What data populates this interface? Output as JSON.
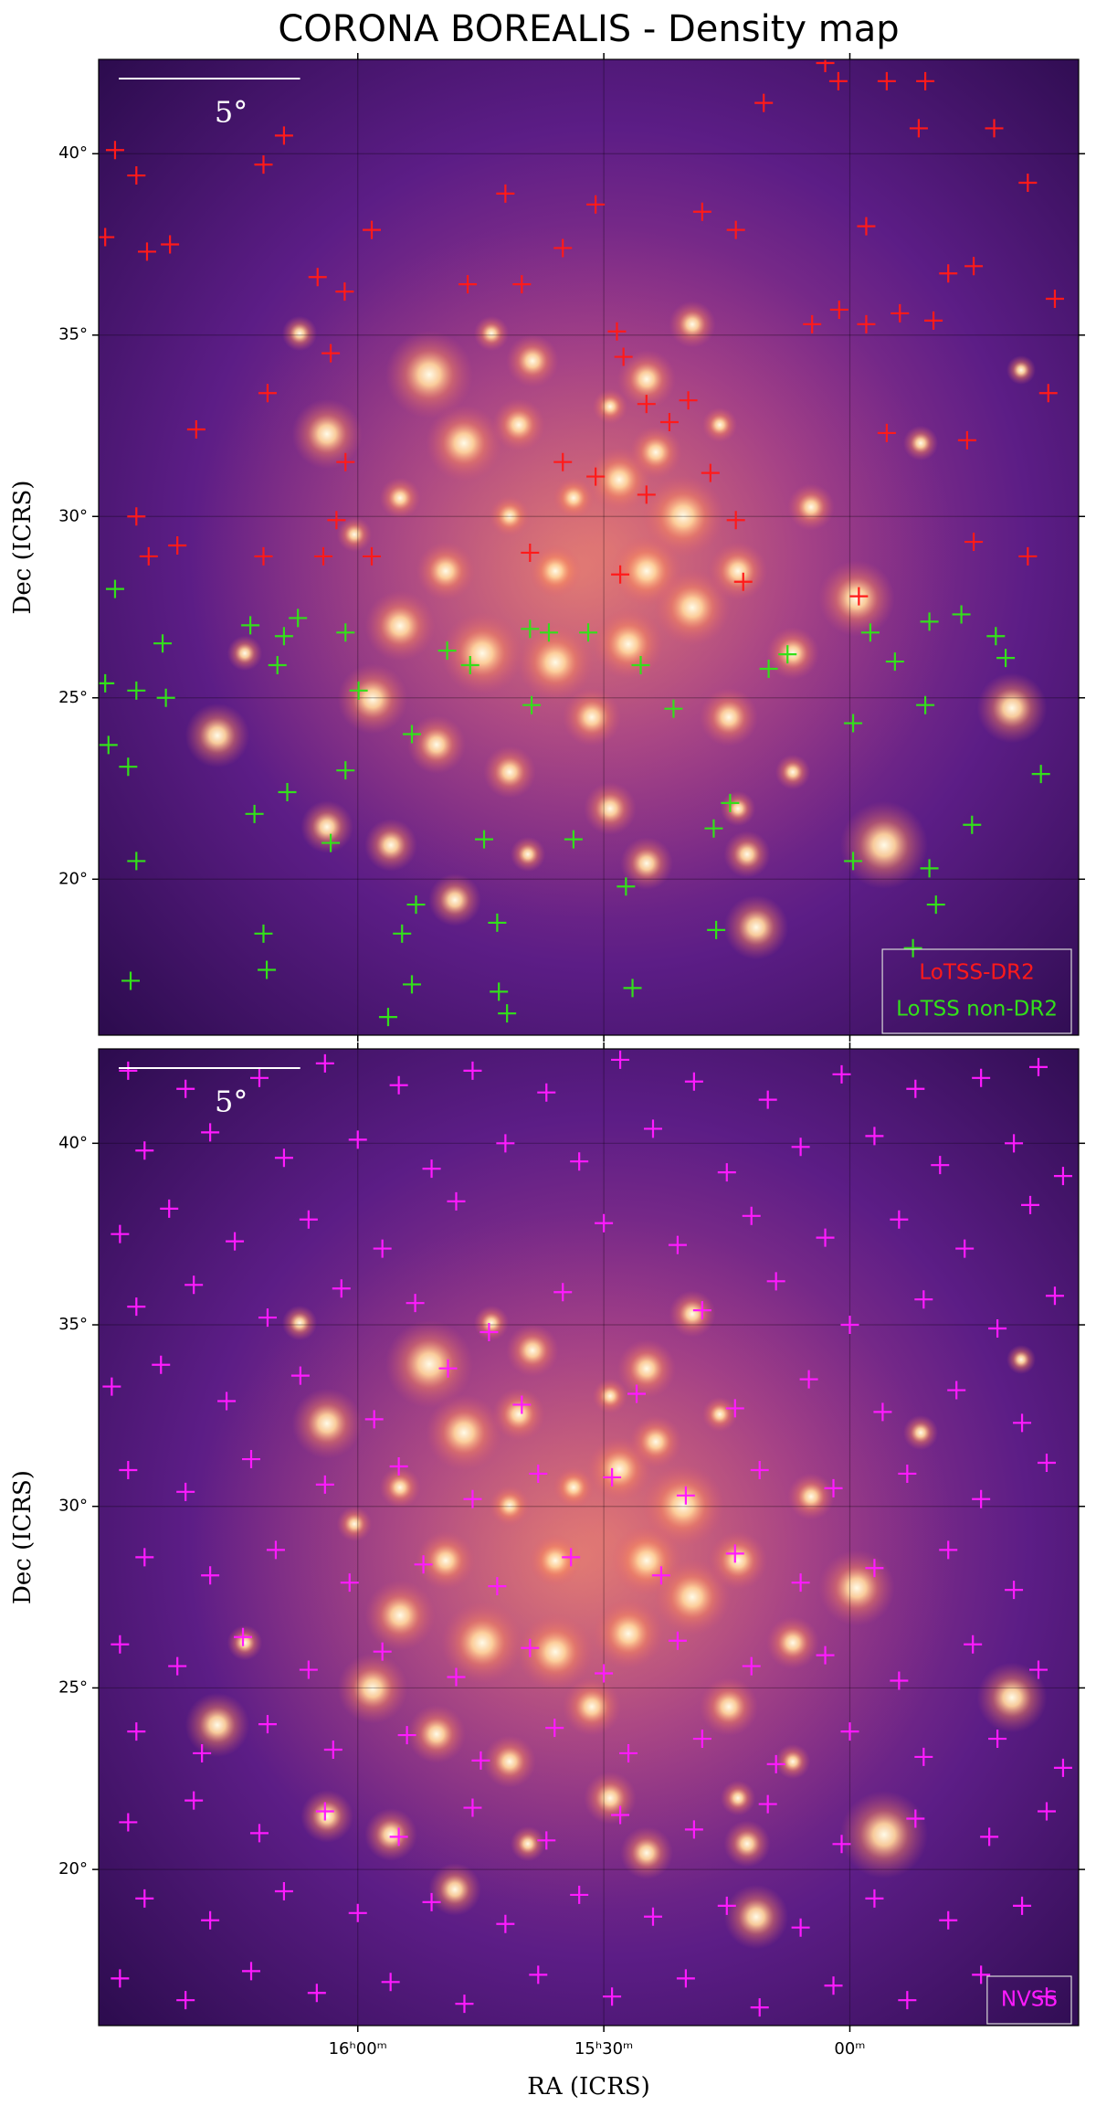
{
  "chart_data": [
    {
      "type": "scatter",
      "title": "CORONA BOREALIS - Density map",
      "ylabel": "Dec (ICRS)",
      "xlim": [
        991.6,
        872.1
      ],
      "ylim": [
        15.7,
        42.6
      ],
      "yticks": [
        {
          "value": 20,
          "label": "20°"
        },
        {
          "value": 25,
          "label": "25°"
        },
        {
          "value": 30,
          "label": "30°"
        },
        {
          "value": 35,
          "label": "35°"
        },
        {
          "value": 40,
          "label": "40°"
        }
      ],
      "grid": true,
      "legend": "lower right",
      "scale_bar": {
        "value": 5,
        "label": "5°"
      },
      "series": [
        {
          "name": "LoTSS-DR2",
          "color": "#ff1a1a",
          "x": [
            989.6,
            987,
            985.7,
            982.9,
            990.8,
            971.5,
            969,
            964.9,
            961.6,
            958.3,
            963.3,
            971,
            979.7,
            961.5,
            962.6,
            964.2,
            971.5,
            958.3,
            987,
            985.5,
            982,
            942,
            946.6,
            940,
            935,
            931,
            928.4,
            927.6,
            935,
            931,
            924.8,
            922,
            919.7,
            924.8,
            939,
            928,
            917,
            913.9,
            913,
            918,
            913.9,
            904.6,
            901.3,
            898,
            898,
            893.9,
            889.8,
            888,
            884.9,
            875,
            875.8,
            885.7,
            884.9,
            895.5,
            898.9,
            878.3,
            901.4,
            890.8,
            910.5,
            891.6,
            878.3,
            882.4,
            895.5,
            903
          ],
          "y": [
            40.1,
            39.4,
            37.3,
            37.5,
            37.7,
            39.7,
            40.5,
            36.6,
            36.2,
            37.9,
            34.5,
            33.4,
            32.4,
            31.5,
            29.9,
            28.9,
            28.9,
            28.9,
            30,
            28.9,
            29.2,
            38.9,
            36.4,
            36.4,
            37.4,
            38.6,
            35.1,
            34.4,
            31.5,
            31.1,
            33.1,
            32.6,
            33.2,
            30.6,
            29,
            28.4,
            31.2,
            29.9,
            28.2,
            38.4,
            37.9,
            35.3,
            35.7,
            38,
            35.3,
            35.6,
            35.4,
            36.7,
            36.9,
            36,
            33.4,
            32.1,
            29.3,
            32.3,
            27.8,
            28.9,
            42,
            42,
            41.4,
            40.7,
            39.2,
            40.7,
            42,
            42.5
          ]
        },
        {
          "name": "LoTSS non-DR2",
          "color": "#33e01a",
          "x": [
            989.6,
            990.8,
            987,
            983.8,
            983.4,
            990.4,
            988,
            987,
            973.1,
            969,
            969.8,
            967.3,
            961.5,
            959.9,
            961.5,
            963.3,
            972.6,
            968.6,
            953.4,
            952.9,
            954.6,
            953.4,
            949.1,
            946.3,
            944.6,
            943,
            939,
            938.8,
            936.7,
            933.7,
            931.9,
            927.3,
            925.5,
            921.5,
            916.6,
            916.3,
            914.6,
            909.9,
            907.6,
            899.6,
            897.5,
            899.6,
            894.5,
            890.8,
            890.3,
            886.4,
            882.2,
            881,
            876.7,
            885.1,
            890.3,
            889.5,
            971.5,
            971.1,
            987.7,
            956.3,
            942.8,
            941.8,
            926.5,
            892.3
          ],
          "y": [
            28,
            25.4,
            25.2,
            26.5,
            25,
            23.7,
            23.1,
            20.5,
            27,
            26.7,
            25.9,
            27.2,
            26.8,
            25.2,
            23,
            21,
            21.8,
            22.4,
            24,
            19.3,
            18.5,
            17.1,
            26.3,
            25.9,
            21.1,
            18.8,
            26.9,
            24.8,
            26.8,
            21.1,
            26.8,
            19.8,
            25.9,
            24.7,
            21.4,
            18.6,
            22.1,
            25.8,
            26.2,
            24.3,
            26.8,
            20.5,
            26,
            24.8,
            27.1,
            27.3,
            26.7,
            26.1,
            22.9,
            21.5,
            20.3,
            19.3,
            18.5,
            17.5,
            17.2,
            16.2,
            16.9,
            16.3,
            17,
            18.1
          ]
        }
      ]
    },
    {
      "type": "scatter",
      "ylabel": "Dec (ICRS)",
      "xlabel": "RA (ICRS)",
      "xlim": [
        991.6,
        872.1
      ],
      "ylim": [
        15.7,
        42.6
      ],
      "xticks": [
        {
          "value": 960,
          "label": "16ʰ00ᵐ"
        },
        {
          "value": 930,
          "label": "15ʰ30ᵐ"
        },
        {
          "value": 900,
          "label": "00ᵐ"
        }
      ],
      "yticks": [
        {
          "value": 20,
          "label": "20°"
        },
        {
          "value": 25,
          "label": "25°"
        },
        {
          "value": 30,
          "label": "30°"
        },
        {
          "value": 35,
          "label": "35°"
        },
        {
          "value": 40,
          "label": "40°"
        }
      ],
      "grid": true,
      "legend": "lower right",
      "scale_bar": {
        "value": 5,
        "label": "5°"
      },
      "series": [
        {
          "name": "NVSS",
          "color": "#ff1aff",
          "x": [
            988,
            981,
            972,
            964,
            955,
            946,
            937,
            928,
            919,
            910,
            901,
            892,
            884,
            877,
            986,
            978,
            969,
            960,
            951,
            942,
            933,
            924,
            915,
            906,
            897,
            889,
            880,
            874,
            989,
            983,
            975,
            966,
            957,
            948,
            930,
            921,
            912,
            903,
            894,
            886,
            878,
            987,
            980,
            971,
            962,
            953,
            944,
            935,
            918,
            909,
            900,
            891,
            882,
            875,
            990,
            984,
            976,
            967,
            958,
            949,
            940,
            926,
            914,
            905,
            896,
            887,
            879,
            988,
            981,
            973,
            964,
            955,
            946,
            938,
            929,
            920,
            911,
            902,
            893,
            884,
            876,
            986,
            978,
            970,
            961,
            952,
            943,
            934,
            923,
            914,
            906,
            897,
            888,
            880,
            989,
            982,
            974,
            966,
            957,
            948,
            939,
            930,
            921,
            912,
            903,
            894,
            885,
            877,
            987,
            979,
            971,
            963,
            954,
            945,
            936,
            927,
            918,
            909,
            900,
            891,
            882,
            874,
            988,
            980,
            972,
            964,
            955,
            946,
            937,
            928,
            919,
            910,
            901,
            892,
            883,
            876,
            986,
            978,
            969,
            960,
            951,
            942,
            933,
            924,
            915,
            906,
            897,
            888,
            879,
            989,
            981,
            973,
            965,
            956,
            947,
            938,
            929,
            920,
            911,
            902,
            893,
            884,
            876
          ],
          "y": [
            42,
            41.5,
            41.8,
            42.2,
            41.6,
            42,
            41.4,
            42.3,
            41.7,
            41.2,
            41.9,
            41.5,
            41.8,
            42.1,
            39.8,
            40.3,
            39.6,
            40.1,
            39.3,
            40,
            39.5,
            40.4,
            39.2,
            39.9,
            40.2,
            39.4,
            40,
            39.1,
            37.5,
            38.2,
            37.3,
            37.9,
            37.1,
            38.4,
            37.8,
            37.2,
            38,
            37.4,
            37.9,
            37.1,
            38.3,
            35.5,
            36.1,
            35.2,
            36,
            35.6,
            34.8,
            35.9,
            35.4,
            36.2,
            35,
            35.7,
            34.9,
            35.8,
            33.3,
            33.9,
            32.9,
            33.6,
            32.4,
            33.8,
            32.8,
            33.1,
            32.7,
            33.5,
            32.6,
            33.2,
            32.3,
            31,
            30.4,
            31.3,
            30.6,
            31.1,
            30.2,
            30.9,
            30.8,
            30.3,
            31,
            30.5,
            30.9,
            30.2,
            31.2,
            28.6,
            28.1,
            28.8,
            27.9,
            28.4,
            27.8,
            28.6,
            28.1,
            28.7,
            27.9,
            28.3,
            28.8,
            27.7,
            26.2,
            25.6,
            26.4,
            25.5,
            26,
            25.3,
            26.1,
            25.4,
            26.3,
            25.6,
            25.9,
            25.2,
            26.2,
            25.5,
            23.8,
            23.2,
            24,
            23.3,
            23.7,
            23,
            23.9,
            23.2,
            23.6,
            22.9,
            23.8,
            23.1,
            23.6,
            22.8,
            21.3,
            21.9,
            21,
            21.6,
            20.9,
            21.7,
            20.8,
            21.5,
            21.1,
            21.8,
            20.7,
            21.4,
            20.9,
            21.6,
            19.2,
            18.6,
            19.4,
            18.8,
            19.1,
            18.5,
            19.3,
            18.7,
            19,
            18.4,
            19.2,
            18.6,
            19,
            17,
            16.4,
            17.2,
            16.6,
            16.9,
            16.3,
            17.1,
            16.5,
            17,
            16.2,
            16.8,
            16.4,
            17.1,
            16.5
          ]
        }
      ]
    }
  ]
}
